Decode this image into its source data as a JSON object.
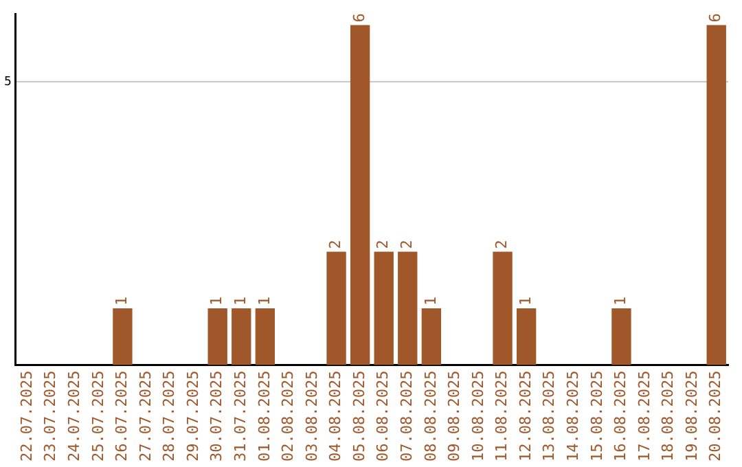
{
  "chart_data": {
    "type": "bar",
    "categories": [
      "22.07.2025",
      "23.07.2025",
      "24.07.2025",
      "25.07.2025",
      "26.07.2025",
      "27.07.2025",
      "28.07.2025",
      "29.07.2025",
      "30.07.2025",
      "31.07.2025",
      "01.08.2025",
      "02.08.2025",
      "03.08.2025",
      "04.08.2025",
      "05.08.2025",
      "06.08.2025",
      "07.08.2025",
      "08.08.2025",
      "09.08.2025",
      "10.08.2025",
      "11.08.2025",
      "12.08.2025",
      "13.08.2025",
      "14.08.2025",
      "15.08.2025",
      "16.08.2025",
      "17.08.2025",
      "18.08.2025",
      "19.08.2025",
      "20.08.2025"
    ],
    "values": [
      0,
      0,
      0,
      0,
      1,
      0,
      0,
      0,
      1,
      1,
      1,
      0,
      0,
      2,
      6,
      2,
      2,
      1,
      0,
      0,
      2,
      1,
      0,
      0,
      0,
      1,
      0,
      0,
      0,
      6
    ],
    "value_labels": [
      null,
      null,
      null,
      null,
      "1",
      null,
      null,
      null,
      "1",
      "1",
      "1",
      null,
      null,
      "2",
      "6",
      "2",
      "2",
      "1",
      null,
      null,
      "2",
      "1",
      null,
      null,
      null,
      "1",
      null,
      null,
      null,
      "6"
    ],
    "color": "#a0572a",
    "ylim": [
      0,
      6.2
    ],
    "yticks": [
      5
    ],
    "grid": "y",
    "legend": false
  }
}
